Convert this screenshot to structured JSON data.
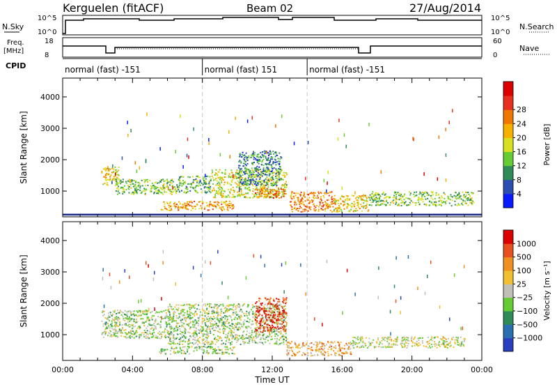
{
  "header": {
    "station": "Kerguelen (fitACF)",
    "beam": "Beam 02",
    "date": "27/Aug/2014"
  },
  "meta_labels": {
    "nsky": "N.Sky",
    "nsearch": "N.Search",
    "freq": "Freq.",
    "freq_unit": "[MHz]",
    "nave": "Nave",
    "cpid": "CPID"
  },
  "meta_axes": {
    "nsky_ticks": [
      "10^5",
      "10^0"
    ],
    "nsearch_ticks": [
      "10^5",
      "10^0"
    ],
    "freq_ticks": [
      "18",
      "8"
    ],
    "nave_ticks": [
      "60",
      "0"
    ]
  },
  "cpid_segments": [
    {
      "label": "normal (fast) -151",
      "start_h": 0,
      "end_h": 8
    },
    {
      "label": "normal (fast) 151",
      "start_h": 8,
      "end_h": 14
    },
    {
      "label": "normal (fast) -151",
      "start_h": 14,
      "end_h": 24
    }
  ],
  "chart_data": [
    {
      "type": "heatmap",
      "panel": "power",
      "ylabel": "Slant Range [km]",
      "xlabel": "",
      "xlim": [
        0,
        24
      ],
      "ylim": [
        180,
        4600
      ],
      "yticks": [
        1000,
        2000,
        3000,
        4000
      ],
      "colorbar": {
        "label": "Power [dB]",
        "ticks": [
          "4",
          "8",
          "12",
          "16",
          "20",
          "24",
          "28"
        ],
        "colors": [
          "#0a1aff",
          "#2a4fb0",
          "#2e8b57",
          "#66cc33",
          "#d9e020",
          "#f5b000",
          "#f07800",
          "#e83020",
          "#dd0000"
        ]
      },
      "regions": [
        {
          "x": [
            2.2,
            3.2
          ],
          "y": [
            1200,
            1800
          ],
          "level": 0.55
        },
        {
          "x": [
            3.0,
            6.5
          ],
          "y": [
            900,
            1400
          ],
          "level": 0.4
        },
        {
          "x": [
            6.5,
            8.5
          ],
          "y": [
            950,
            1500
          ],
          "level": 0.35
        },
        {
          "x": [
            8.5,
            12.8
          ],
          "y": [
            800,
            1700
          ],
          "level": 0.5
        },
        {
          "x": [
            10.0,
            12.5
          ],
          "y": [
            1200,
            2300
          ],
          "level": 0.25
        },
        {
          "x": [
            11.0,
            12.7
          ],
          "y": [
            800,
            1100
          ],
          "level": 0.75
        },
        {
          "x": [
            13.0,
            15.5
          ],
          "y": [
            350,
            1000
          ],
          "level": 0.7
        },
        {
          "x": [
            15.5,
            17.5
          ],
          "y": [
            350,
            900
          ],
          "level": 0.55
        },
        {
          "x": [
            17.5,
            23.5
          ],
          "y": [
            550,
            1000
          ],
          "level": 0.4
        },
        {
          "x": [
            5.5,
            9.8
          ],
          "y": [
            400,
            700
          ],
          "level": 0.65
        }
      ]
    },
    {
      "type": "heatmap",
      "panel": "velocity",
      "ylabel": "Slant Range [km]",
      "xlabel": "Time UT",
      "xlim": [
        0,
        24
      ],
      "ylim": [
        180,
        4600
      ],
      "yticks": [
        1000,
        2000,
        3000,
        4000
      ],
      "xticks": [
        "00:00",
        "04:00",
        "08:00",
        "12:00",
        "16:00",
        "20:00",
        "00:00"
      ],
      "colorbar": {
        "label": "Velocity [m s⁻¹]",
        "ticks": [
          "1000",
          "500",
          "100",
          "25",
          "−25",
          "−100",
          "−500",
          "−1000"
        ],
        "colors": [
          "#2a3fc0",
          "#2a6fb0",
          "#2e8b57",
          "#66cc33",
          "#c0c0b8",
          "#f0c030",
          "#f09020",
          "#e85020",
          "#dd0000"
        ]
      },
      "regions": [
        {
          "x": [
            2.2,
            6.0
          ],
          "y": [
            900,
            1800
          ],
          "level": 0.45
        },
        {
          "x": [
            6.0,
            12.8
          ],
          "y": [
            700,
            2000
          ],
          "level": 0.45
        },
        {
          "x": [
            11.0,
            12.8
          ],
          "y": [
            1100,
            2200
          ],
          "level": 0.88
        },
        {
          "x": [
            12.8,
            16.5
          ],
          "y": [
            350,
            800
          ],
          "level": 0.65
        },
        {
          "x": [
            16.5,
            23.0
          ],
          "y": [
            600,
            950
          ],
          "level": 0.5
        },
        {
          "x": [
            5.5,
            9.8
          ],
          "y": [
            400,
            650
          ],
          "level": 0.45
        }
      ]
    }
  ]
}
